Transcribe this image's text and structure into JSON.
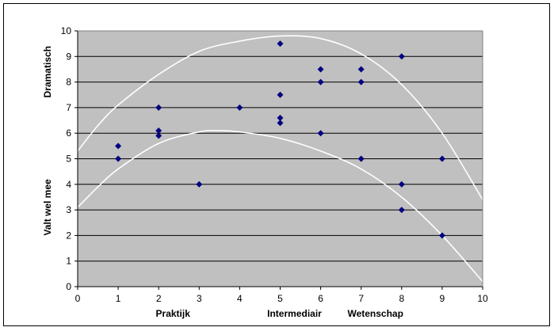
{
  "chart_data": {
    "type": "scatter",
    "title": "",
    "xlim": [
      0,
      10
    ],
    "ylim": [
      0,
      10
    ],
    "x_ticks": [
      "0",
      "1",
      "2",
      "3",
      "4",
      "5",
      "6",
      "7",
      "8",
      "9",
      "10"
    ],
    "y_ticks": [
      "0",
      "1",
      "2",
      "3",
      "4",
      "5",
      "6",
      "7",
      "8",
      "9",
      "10"
    ],
    "grid": true,
    "category_labels": [
      {
        "x": 2,
        "label": "Praktijk"
      },
      {
        "x": 5,
        "label": "Intermediair"
      },
      {
        "x": 7,
        "label": "Wetenschap"
      }
    ],
    "ylabel_top": "Dramatisch",
    "ylabel_bottom": "Valt wel mee",
    "colors": {
      "plot_bg": "#c0c0c0",
      "marker": "#000080",
      "curve": "#ffffff",
      "grid": "#000000"
    },
    "series": [
      {
        "points": [
          [
            1,
            5.5
          ],
          [
            1,
            5
          ],
          [
            2,
            7
          ],
          [
            2,
            6.1
          ],
          [
            2,
            5.9
          ],
          [
            3,
            4
          ],
          [
            4,
            7
          ],
          [
            5,
            9.5
          ],
          [
            5,
            7.5
          ],
          [
            5,
            6.6
          ],
          [
            5,
            6.4
          ],
          [
            6,
            8.5
          ],
          [
            6,
            8
          ],
          [
            6,
            6
          ],
          [
            7,
            8.5
          ],
          [
            7,
            8
          ],
          [
            7,
            5
          ],
          [
            8,
            9
          ],
          [
            8,
            4
          ],
          [
            8,
            3
          ],
          [
            9,
            5
          ],
          [
            9,
            2
          ]
        ]
      }
    ],
    "curves": [
      {
        "x": [
          0,
          0.5,
          1,
          2,
          3,
          4,
          5,
          6,
          7,
          8,
          9,
          10
        ],
        "y": [
          5.3,
          6.3,
          7.1,
          8.3,
          9.2,
          9.6,
          9.8,
          9.7,
          9.1,
          7.9,
          6.0,
          3.4
        ]
      },
      {
        "x": [
          0,
          0.5,
          1,
          2,
          3,
          3.5,
          4,
          5,
          6,
          7,
          8,
          9,
          10
        ],
        "y": [
          3.1,
          3.9,
          4.6,
          5.6,
          6.05,
          6.1,
          6.05,
          5.8,
          5.3,
          4.6,
          3.5,
          2.0,
          0.2
        ]
      }
    ]
  }
}
